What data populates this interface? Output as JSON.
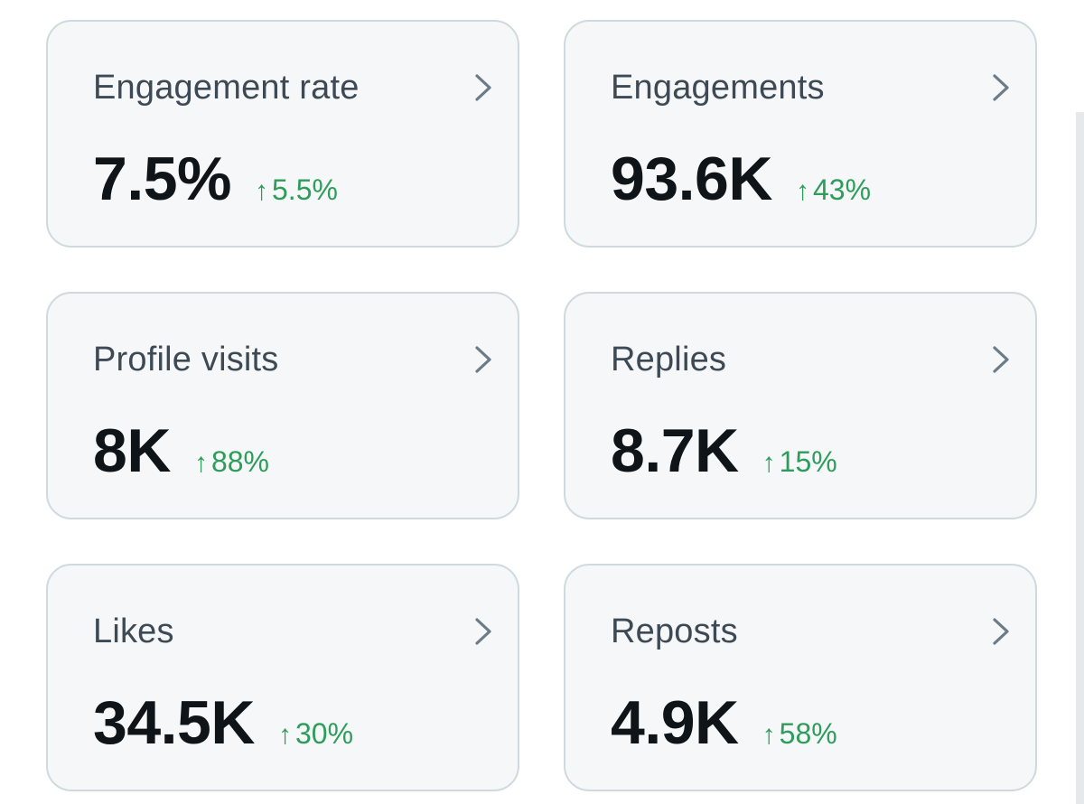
{
  "cards": [
    {
      "label": "Engagement rate",
      "value": "7.5%",
      "change": "5.5%"
    },
    {
      "label": "Engagements",
      "value": "93.6K",
      "change": "43%"
    },
    {
      "label": "Profile visits",
      "value": "8K",
      "change": "88%"
    },
    {
      "label": "Replies",
      "value": "8.7K",
      "change": "15%"
    },
    {
      "label": "Likes",
      "value": "34.5K",
      "change": "30%"
    },
    {
      "label": "Reposts",
      "value": "4.9K",
      "change": "58%"
    }
  ],
  "icons": {
    "chevron": "chevron-right-icon",
    "trend": "arrow-up-icon"
  },
  "colors": {
    "positive": "#2e9d5c",
    "card_bg": "#f5f7f8",
    "card_border": "#cfd9de"
  }
}
